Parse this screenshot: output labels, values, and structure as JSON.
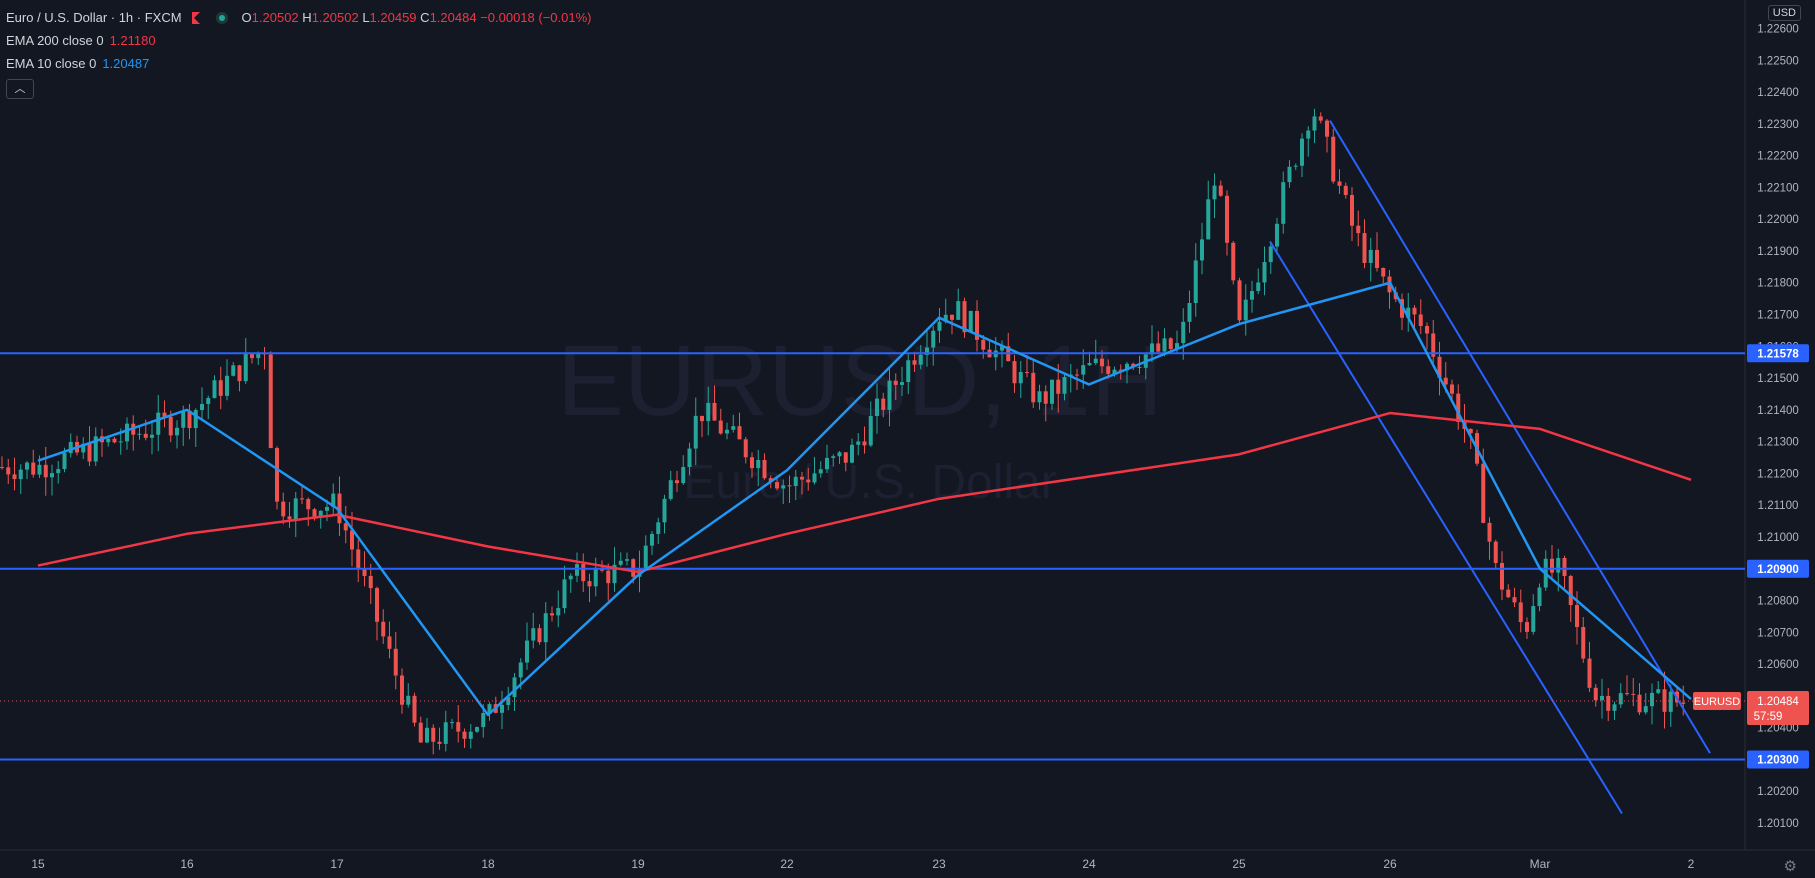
{
  "header": {
    "symbol": "Euro / U.S. Dollar · 1h · FXCM",
    "ohlc": [
      {
        "k": "O",
        "v": "1.20502"
      },
      {
        "k": "H",
        "v": "1.20502"
      },
      {
        "k": "L",
        "v": "1.20459"
      },
      {
        "k": "C",
        "v": "1.20484"
      },
      {
        "k": "",
        "v": "−0.00018 (−0.01%)"
      }
    ],
    "indicators": [
      {
        "name": "EMA 200 close 0",
        "value": "1.21180",
        "color": "#f23645"
      },
      {
        "name": "EMA 10 close 0",
        "value": "1.20487",
        "color": "#2196f3"
      }
    ],
    "collapse_icon": "chevron-up-icon"
  },
  "currency": "USD",
  "watermark": {
    "line1": "EURUSD, 1H",
    "line2": "Euro / U.S. Dollar"
  },
  "colors": {
    "background": "#131722",
    "up": "#26a69a",
    "down": "#ef5350",
    "ema200": "#f23645",
    "ema10": "#2196f3",
    "lines": "#2962ff",
    "axis_text": "#b2b5be"
  },
  "chart_data": {
    "type": "candlestick",
    "timeframe": "1h",
    "ylim": [
      1.2005,
      1.2267
    ],
    "y_ticks": [
      "1.20100",
      "1.20200",
      "1.20300",
      "1.20400",
      "1.20500",
      "1.20600",
      "1.20700",
      "1.20800",
      "1.20900",
      "1.21000",
      "1.21100",
      "1.21200",
      "1.21300",
      "1.21400",
      "1.21500",
      "1.21600",
      "1.21700",
      "1.21800",
      "1.21900",
      "1.22000",
      "1.22100",
      "1.22200",
      "1.22300",
      "1.22400",
      "1.22500",
      "1.22600"
    ],
    "x_ticks": [
      "15",
      "16",
      "17",
      "18",
      "19",
      "22",
      "23",
      "24",
      "25",
      "26",
      "Mar",
      "2"
    ],
    "horizontal_levels": [
      {
        "price": 1.21578,
        "label": "1.21578"
      },
      {
        "price": 1.209,
        "label": "1.20900"
      },
      {
        "price": 1.203,
        "label": "1.20300"
      }
    ],
    "trendlines": [
      {
        "from": [
          "25",
          1.2193
        ],
        "to": [
          "2",
          1.2013
        ]
      },
      {
        "from": [
          "25",
          1.2231
        ],
        "to": [
          "2",
          1.2032
        ]
      }
    ],
    "last_price": {
      "symbol": "EURUSD",
      "price": "1.20484",
      "countdown": "57:59"
    },
    "ema200_path": [
      {
        "t": "15",
        "p": 1.2091
      },
      {
        "t": "16",
        "p": 1.2101
      },
      {
        "t": "17",
        "p": 1.2107
      },
      {
        "t": "18",
        "p": 1.2097
      },
      {
        "t": "19",
        "p": 1.2089
      },
      {
        "t": "22",
        "p": 1.2101
      },
      {
        "t": "23",
        "p": 1.2112
      },
      {
        "t": "24",
        "p": 1.2119
      },
      {
        "t": "25",
        "p": 1.2126
      },
      {
        "t": "26",
        "p": 1.2139
      },
      {
        "t": "Mar",
        "p": 1.2134
      },
      {
        "t": "2",
        "p": 1.2118
      }
    ],
    "ema10_path": [
      {
        "t": "15",
        "p": 1.2124
      },
      {
        "t": "16",
        "p": 1.214
      },
      {
        "t": "17",
        "p": 1.2109
      },
      {
        "t": "18",
        "p": 1.2044
      },
      {
        "t": "19",
        "p": 1.2088
      },
      {
        "t": "22",
        "p": 1.2121
      },
      {
        "t": "23",
        "p": 1.2169
      },
      {
        "t": "24",
        "p": 1.2148
      },
      {
        "t": "25",
        "p": 1.2167
      },
      {
        "t": "26",
        "p": 1.218
      },
      {
        "t": "Mar",
        "p": 1.209
      },
      {
        "t": "2",
        "p": 1.2049
      }
    ],
    "close_path": [
      {
        "t": "15",
        "p": 1.2122
      },
      {
        "t": "16",
        "p": 1.2138
      },
      {
        "t": "17",
        "p": 1.211
      },
      {
        "t": "18",
        "p": 1.2043
      },
      {
        "t": "19",
        "p": 1.209
      },
      {
        "t": "22",
        "p": 1.2116
      },
      {
        "t": "23",
        "p": 1.217
      },
      {
        "t": "24",
        "p": 1.2153
      },
      {
        "t": "25",
        "p": 1.2165
      },
      {
        "t": "26",
        "p": 1.2176
      },
      {
        "t": "Mar",
        "p": 1.2089
      },
      {
        "t": "2",
        "p": 1.2048
      }
    ]
  }
}
